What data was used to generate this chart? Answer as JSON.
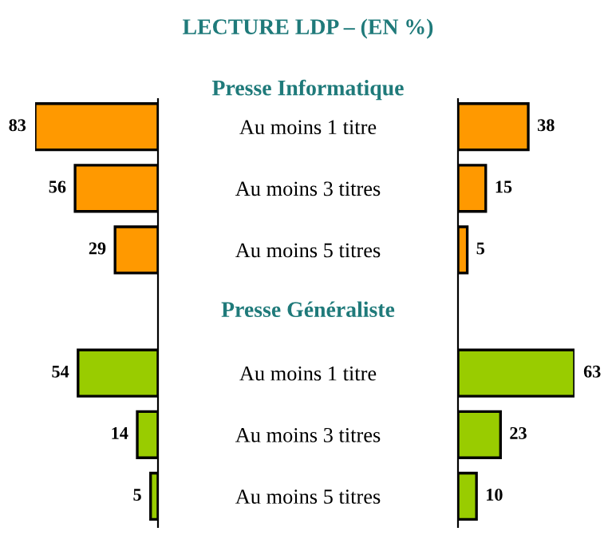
{
  "chart_data": [
    {
      "type": "bar",
      "orientation": "horizontal",
      "title": "LECTURE LDP – (EN %)",
      "annotations": [
        "Presse Informatique",
        "Presse Généraliste"
      ],
      "categories": [
        "Au moins 1 titre",
        "Au moins 3 titres",
        "Au moins 5 titres",
        null,
        "Au moins 1 titre",
        "Au moins 3 titres",
        "Au moins 5 titres"
      ],
      "values": [
        83,
        56,
        29,
        null,
        54,
        14,
        5
      ],
      "colors": [
        "#ff9900",
        "#ff9900",
        "#ff9900",
        null,
        "#99cc00",
        "#99cc00",
        "#99cc00"
      ],
      "xlim": [
        83,
        0
      ],
      "data_labels": true,
      "tick_labels": "y"
    },
    {
      "type": "bar",
      "orientation": "horizontal",
      "categories": [
        null,
        null,
        null,
        null,
        null,
        null,
        null
      ],
      "values": [
        38,
        15,
        5,
        null,
        63,
        23,
        10
      ],
      "colors": [
        "#ff9900",
        "#ff9900",
        "#ff9900",
        null,
        "#99cc00",
        "#99cc00",
        "#99cc00"
      ],
      "xlim": [
        0,
        63
      ],
      "data_labels": true,
      "tick_labels": false
    }
  ]
}
